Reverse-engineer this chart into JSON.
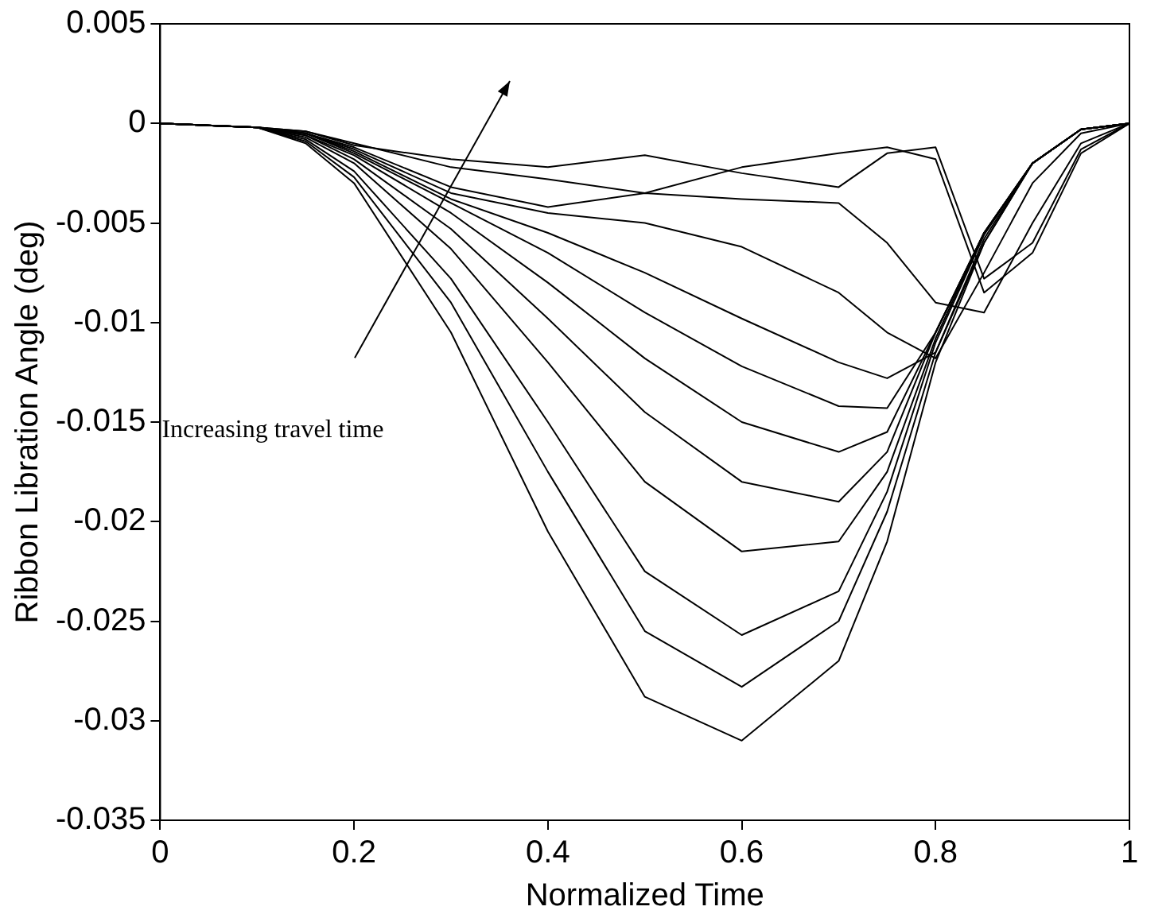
{
  "chart_data": {
    "type": "line",
    "xlabel": "Normalized Time",
    "ylabel": "Ribbon Libration Angle (deg)",
    "x": [
      0,
      0.1,
      0.15,
      0.2,
      0.3,
      0.4,
      0.5,
      0.6,
      0.7,
      0.75,
      0.8,
      0.85,
      0.9,
      0.95,
      1
    ],
    "xlim": [
      0,
      1
    ],
    "xticks": [
      0,
      0.2,
      0.4,
      0.6,
      0.8,
      1
    ],
    "ylim": [
      -0.035,
      0.005
    ],
    "yticks": [
      -0.035,
      -0.03,
      -0.025,
      -0.02,
      -0.015,
      -0.01,
      -0.005,
      0,
      0.005
    ],
    "grid": false,
    "legend": false,
    "marker": "none",
    "line_style": "solid",
    "annotations": [
      "Increasing travel time"
    ],
    "series": [
      {
        "color": "#000000",
        "values": [
          0,
          -0.0002,
          -0.001,
          -0.003,
          -0.0105,
          -0.0205,
          -0.0288,
          -0.031,
          -0.027,
          -0.021,
          -0.012,
          -0.006,
          -0.002,
          -0.0003,
          0
        ]
      },
      {
        "color": "#000000",
        "values": [
          0,
          -0.0002,
          -0.0009,
          -0.0027,
          -0.009,
          -0.0175,
          -0.0255,
          -0.0283,
          -0.025,
          -0.0195,
          -0.0115,
          -0.0058,
          -0.002,
          -0.0003,
          0
        ]
      },
      {
        "color": "#000000",
        "values": [
          0,
          -0.0002,
          -0.0008,
          -0.0024,
          -0.0078,
          -0.015,
          -0.0225,
          -0.0257,
          -0.0235,
          -0.0185,
          -0.011,
          -0.0056,
          -0.002,
          -0.0003,
          0
        ]
      },
      {
        "color": "#000000",
        "values": [
          0,
          -0.0002,
          -0.0007,
          -0.002,
          -0.0063,
          -0.012,
          -0.018,
          -0.0215,
          -0.021,
          -0.0175,
          -0.0108,
          -0.0055,
          -0.002,
          -0.0003,
          0
        ]
      },
      {
        "color": "#000000",
        "values": [
          0,
          -0.0002,
          -0.0006,
          -0.0018,
          -0.0053,
          -0.0098,
          -0.0145,
          -0.018,
          -0.019,
          -0.0165,
          -0.0105,
          -0.0055,
          -0.002,
          -0.0003,
          0
        ]
      },
      {
        "color": "#000000",
        "values": [
          0,
          -0.0002,
          -0.0006,
          -0.0016,
          -0.0045,
          -0.008,
          -0.0118,
          -0.015,
          -0.0165,
          -0.0155,
          -0.0105,
          -0.0055,
          -0.002,
          -0.0003,
          0
        ]
      },
      {
        "color": "#000000",
        "values": [
          0,
          -0.0002,
          -0.0005,
          -0.0015,
          -0.004,
          -0.0065,
          -0.0095,
          -0.0122,
          -0.0142,
          -0.0143,
          -0.0105,
          -0.0055,
          -0.002,
          -0.0003,
          0
        ]
      },
      {
        "color": "#000000",
        "values": [
          0,
          -0.0002,
          -0.0005,
          -0.0014,
          -0.0038,
          -0.0055,
          -0.0075,
          -0.0098,
          -0.012,
          -0.0128,
          -0.0115,
          -0.006,
          -0.002,
          -0.0003,
          0
        ]
      },
      {
        "color": "#000000",
        "values": [
          0,
          -0.0002,
          -0.0005,
          -0.0013,
          -0.0035,
          -0.0045,
          -0.005,
          -0.0062,
          -0.0085,
          -0.0105,
          -0.0118,
          -0.0075,
          -0.003,
          -0.0005,
          0
        ]
      },
      {
        "color": "#000000",
        "values": [
          0,
          -0.0002,
          -0.0005,
          -0.0012,
          -0.0032,
          -0.0042,
          -0.0035,
          -0.0038,
          -0.004,
          -0.006,
          -0.009,
          -0.0095,
          -0.005,
          -0.001,
          0
        ]
      },
      {
        "color": "#000000",
        "values": [
          0,
          -0.0002,
          -0.0004,
          -0.001,
          -0.0022,
          -0.0028,
          -0.0035,
          -0.0022,
          -0.0015,
          -0.0012,
          -0.0018,
          -0.0085,
          -0.0065,
          -0.0015,
          0
        ]
      },
      {
        "color": "#000000",
        "values": [
          0,
          -0.0002,
          -0.0004,
          -0.0011,
          -0.0018,
          -0.0022,
          -0.0016,
          -0.0025,
          -0.0032,
          -0.0015,
          -0.0012,
          -0.0078,
          -0.006,
          -0.0013,
          0
        ]
      }
    ]
  }
}
